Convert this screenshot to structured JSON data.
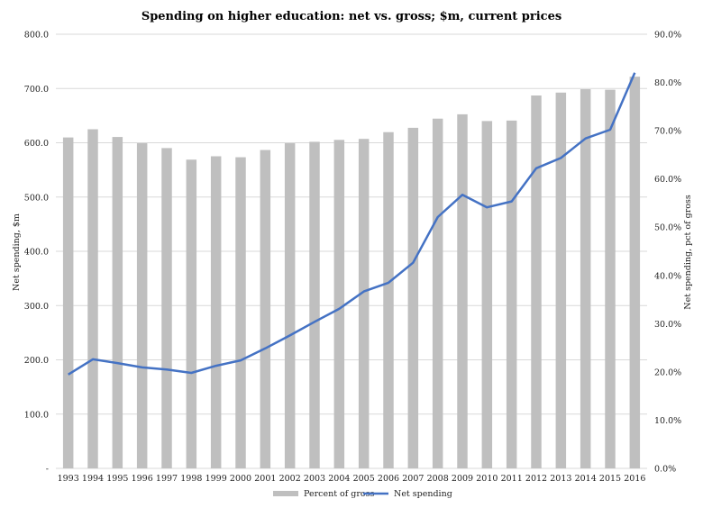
{
  "chart_data": {
    "type": "bar-line",
    "title": "Spending on higher education: net vs. gross; $m, current prices",
    "categories": [
      "1993",
      "1994",
      "1995",
      "1996",
      "1997",
      "1998",
      "1999",
      "2000",
      "2001",
      "2002",
      "2003",
      "2004",
      "2005",
      "2006",
      "2007",
      "2008",
      "2009",
      "2010",
      "2011",
      "2012",
      "2013",
      "2014",
      "2015",
      "2016"
    ],
    "series": [
      {
        "name": "Percent of gross",
        "type": "bar",
        "axis": "right",
        "color": "#bfbfbf",
        "values": [
          0.686,
          0.703,
          0.687,
          0.674,
          0.664,
          0.64,
          0.647,
          0.645,
          0.66,
          0.674,
          0.677,
          0.681,
          0.683,
          0.697,
          0.706,
          0.725,
          0.734,
          0.72,
          0.721,
          0.773,
          0.779,
          0.786,
          0.785,
          0.812
        ]
      },
      {
        "name": "Net spending",
        "type": "line",
        "axis": "left",
        "color": "#4472c4",
        "values": [
          173,
          201,
          194,
          186,
          182,
          176,
          189,
          199,
          221,
          245,
          270,
          294,
          326,
          342,
          379,
          463,
          504,
          481,
          492,
          553,
          572,
          608,
          624,
          729
        ]
      }
    ],
    "ylabel_left": "Net spending, $m",
    "ylabel_right": "Net spending, pct of gross",
    "ylim_left": [
      0,
      800
    ],
    "ylim_right": [
      0,
      0.9
    ],
    "yticks_left": [
      "-",
      "100.0",
      "200.0",
      "300.0",
      "400.0",
      "500.0",
      "600.0",
      "700.0",
      "800.0"
    ],
    "yticks_right": [
      "0.0%",
      "10.0%",
      "20.0%",
      "30.0%",
      "40.0%",
      "50.0%",
      "60.0%",
      "70.0%",
      "80.0%",
      "90.0%"
    ],
    "grid": true,
    "legend_position": "bottom"
  }
}
